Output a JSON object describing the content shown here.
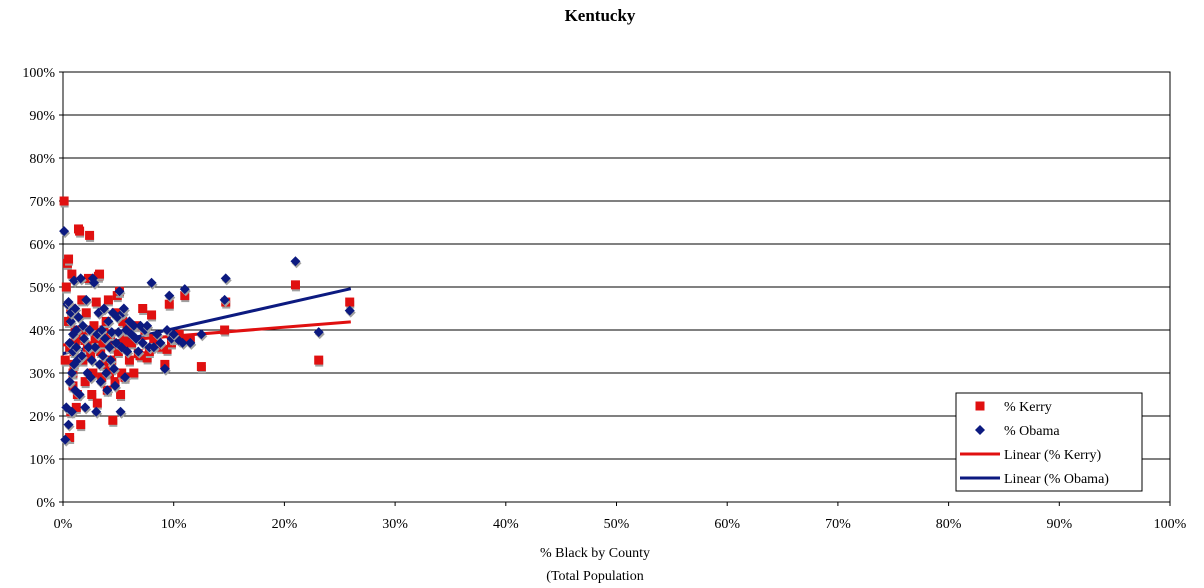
{
  "chart_data": {
    "type": "scatter",
    "title": "Kentucky",
    "xlabel_line1": "% Black by County",
    "xlabel_line2": "(Total Population",
    "ylabel": "",
    "xlim": [
      0,
      1
    ],
    "ylim": [
      0,
      1
    ],
    "x_ticks": [
      0,
      0.1,
      0.2,
      0.3,
      0.4,
      0.5,
      0.6,
      0.7,
      0.8,
      0.9,
      1.0
    ],
    "y_ticks": [
      0,
      0.1,
      0.2,
      0.3,
      0.4,
      0.5,
      0.6,
      0.7,
      0.8,
      0.9,
      1.0
    ],
    "x_tick_labels": [
      "0%",
      "10%",
      "20%",
      "30%",
      "40%",
      "50%",
      "60%",
      "70%",
      "80%",
      "90%",
      "100%"
    ],
    "y_tick_labels": [
      "0%",
      "10%",
      "20%",
      "30%",
      "40%",
      "50%",
      "60%",
      "70%",
      "80%",
      "90%",
      "100%"
    ],
    "grid": "horizontal",
    "legend_position": "bottom-right",
    "series": [
      {
        "name": "% Kerry",
        "marker": "square",
        "color": "#e01010",
        "points": [
          [
            0.001,
            0.7
          ],
          [
            0.002,
            0.33
          ],
          [
            0.003,
            0.5
          ],
          [
            0.004,
            0.555
          ],
          [
            0.005,
            0.565
          ],
          [
            0.006,
            0.15
          ],
          [
            0.007,
            0.21
          ],
          [
            0.008,
            0.44
          ],
          [
            0.009,
            0.3
          ],
          [
            0.01,
            0.35
          ],
          [
            0.011,
            0.4
          ],
          [
            0.012,
            0.38
          ],
          [
            0.013,
            0.25
          ],
          [
            0.005,
            0.42
          ],
          [
            0.006,
            0.36
          ],
          [
            0.007,
            0.45
          ],
          [
            0.008,
            0.53
          ],
          [
            0.009,
            0.27
          ],
          [
            0.01,
            0.32
          ],
          [
            0.011,
            0.37
          ],
          [
            0.012,
            0.22
          ],
          [
            0.014,
            0.635
          ],
          [
            0.015,
            0.63
          ],
          [
            0.016,
            0.18
          ],
          [
            0.017,
            0.47
          ],
          [
            0.018,
            0.33
          ],
          [
            0.019,
            0.4
          ],
          [
            0.02,
            0.28
          ],
          [
            0.021,
            0.44
          ],
          [
            0.022,
            0.36
          ],
          [
            0.023,
            0.52
          ],
          [
            0.024,
            0.62
          ],
          [
            0.025,
            0.34
          ],
          [
            0.026,
            0.25
          ],
          [
            0.027,
            0.3
          ],
          [
            0.028,
            0.41
          ],
          [
            0.029,
            0.38
          ],
          [
            0.03,
            0.465
          ],
          [
            0.031,
            0.23
          ],
          [
            0.032,
            0.525
          ],
          [
            0.033,
            0.53
          ],
          [
            0.034,
            0.35
          ],
          [
            0.035,
            0.29
          ],
          [
            0.036,
            0.37
          ],
          [
            0.037,
            0.4
          ],
          [
            0.038,
            0.32
          ],
          [
            0.039,
            0.42
          ],
          [
            0.04,
            0.26
          ],
          [
            0.041,
            0.47
          ],
          [
            0.042,
            0.3
          ],
          [
            0.043,
            0.39
          ],
          [
            0.044,
            0.33
          ],
          [
            0.045,
            0.19
          ],
          [
            0.046,
            0.36
          ],
          [
            0.047,
            0.28
          ],
          [
            0.048,
            0.44
          ],
          [
            0.049,
            0.48
          ],
          [
            0.05,
            0.35
          ],
          [
            0.051,
            0.49
          ],
          [
            0.052,
            0.25
          ],
          [
            0.053,
            0.3
          ],
          [
            0.054,
            0.42
          ],
          [
            0.055,
            0.38
          ],
          [
            0.056,
            0.29
          ],
          [
            0.057,
            0.36
          ],
          [
            0.058,
            0.4
          ],
          [
            0.06,
            0.33
          ],
          [
            0.062,
            0.37
          ],
          [
            0.064,
            0.3
          ],
          [
            0.066,
            0.41
          ],
          [
            0.068,
            0.345
          ],
          [
            0.07,
            0.34
          ],
          [
            0.072,
            0.45
          ],
          [
            0.074,
            0.4
          ],
          [
            0.076,
            0.335
          ],
          [
            0.078,
            0.35
          ],
          [
            0.08,
            0.435
          ],
          [
            0.082,
            0.38
          ],
          [
            0.085,
            0.37
          ],
          [
            0.088,
            0.36
          ],
          [
            0.092,
            0.32
          ],
          [
            0.094,
            0.355
          ],
          [
            0.096,
            0.46
          ],
          [
            0.098,
            0.37
          ],
          [
            0.1,
            0.38
          ],
          [
            0.105,
            0.39
          ],
          [
            0.108,
            0.38
          ],
          [
            0.11,
            0.48
          ],
          [
            0.115,
            0.38
          ],
          [
            0.125,
            0.315
          ],
          [
            0.146,
            0.4
          ],
          [
            0.147,
            0.465
          ],
          [
            0.21,
            0.505
          ],
          [
            0.231,
            0.33
          ],
          [
            0.259,
            0.465
          ]
        ]
      },
      {
        "name": "% Obama",
        "marker": "diamond",
        "color": "#0c1a80",
        "points": [
          [
            0.001,
            0.63
          ],
          [
            0.002,
            0.145
          ],
          [
            0.003,
            0.22
          ],
          [
            0.004,
            0.46
          ],
          [
            0.005,
            0.18
          ],
          [
            0.006,
            0.37
          ],
          [
            0.007,
            0.42
          ],
          [
            0.008,
            0.3
          ],
          [
            0.009,
            0.35
          ],
          [
            0.01,
            0.515
          ],
          [
            0.011,
            0.26
          ],
          [
            0.012,
            0.4
          ],
          [
            0.013,
            0.33
          ],
          [
            0.005,
            0.465
          ],
          [
            0.006,
            0.28
          ],
          [
            0.007,
            0.44
          ],
          [
            0.008,
            0.21
          ],
          [
            0.009,
            0.39
          ],
          [
            0.01,
            0.32
          ],
          [
            0.011,
            0.45
          ],
          [
            0.012,
            0.36
          ],
          [
            0.014,
            0.43
          ],
          [
            0.015,
            0.25
          ],
          [
            0.016,
            0.52
          ],
          [
            0.017,
            0.34
          ],
          [
            0.018,
            0.41
          ],
          [
            0.019,
            0.38
          ],
          [
            0.02,
            0.22
          ],
          [
            0.021,
            0.47
          ],
          [
            0.022,
            0.3
          ],
          [
            0.023,
            0.36
          ],
          [
            0.024,
            0.4
          ],
          [
            0.025,
            0.29
          ],
          [
            0.026,
            0.33
          ],
          [
            0.027,
            0.52
          ],
          [
            0.028,
            0.51
          ],
          [
            0.029,
            0.36
          ],
          [
            0.03,
            0.21
          ],
          [
            0.031,
            0.39
          ],
          [
            0.032,
            0.44
          ],
          [
            0.033,
            0.32
          ],
          [
            0.034,
            0.28
          ],
          [
            0.035,
            0.4
          ],
          [
            0.036,
            0.34
          ],
          [
            0.037,
            0.45
          ],
          [
            0.038,
            0.38
          ],
          [
            0.039,
            0.3
          ],
          [
            0.04,
            0.26
          ],
          [
            0.041,
            0.42
          ],
          [
            0.042,
            0.36
          ],
          [
            0.043,
            0.33
          ],
          [
            0.044,
            0.395
          ],
          [
            0.045,
            0.44
          ],
          [
            0.046,
            0.31
          ],
          [
            0.047,
            0.27
          ],
          [
            0.048,
            0.37
          ],
          [
            0.049,
            0.43
          ],
          [
            0.05,
            0.395
          ],
          [
            0.051,
            0.49
          ],
          [
            0.052,
            0.21
          ],
          [
            0.053,
            0.36
          ],
          [
            0.054,
            0.44
          ],
          [
            0.055,
            0.45
          ],
          [
            0.056,
            0.29
          ],
          [
            0.057,
            0.4
          ],
          [
            0.058,
            0.35
          ],
          [
            0.06,
            0.42
          ],
          [
            0.062,
            0.39
          ],
          [
            0.064,
            0.41
          ],
          [
            0.066,
            0.38
          ],
          [
            0.068,
            0.35
          ],
          [
            0.07,
            0.41
          ],
          [
            0.072,
            0.37
          ],
          [
            0.074,
            0.4
          ],
          [
            0.076,
            0.41
          ],
          [
            0.078,
            0.36
          ],
          [
            0.08,
            0.51
          ],
          [
            0.082,
            0.36
          ],
          [
            0.085,
            0.39
          ],
          [
            0.088,
            0.37
          ],
          [
            0.092,
            0.31
          ],
          [
            0.094,
            0.4
          ],
          [
            0.096,
            0.48
          ],
          [
            0.098,
            0.38
          ],
          [
            0.1,
            0.39
          ],
          [
            0.105,
            0.375
          ],
          [
            0.108,
            0.37
          ],
          [
            0.11,
            0.495
          ],
          [
            0.115,
            0.37
          ],
          [
            0.125,
            0.39
          ],
          [
            0.146,
            0.47
          ],
          [
            0.147,
            0.52
          ],
          [
            0.21,
            0.56
          ],
          [
            0.231,
            0.395
          ],
          [
            0.259,
            0.445
          ]
        ]
      }
    ],
    "trendlines": [
      {
        "name": "Linear (% Kerry)",
        "color": "#e01010",
        "x0": 0.0,
        "y0": 0.365,
        "x1": 0.26,
        "y1": 0.419
      },
      {
        "name": "Linear (% Obama)",
        "color": "#0c1a80",
        "x0": 0.0,
        "y0": 0.345,
        "x1": 0.26,
        "y1": 0.496
      }
    ]
  }
}
